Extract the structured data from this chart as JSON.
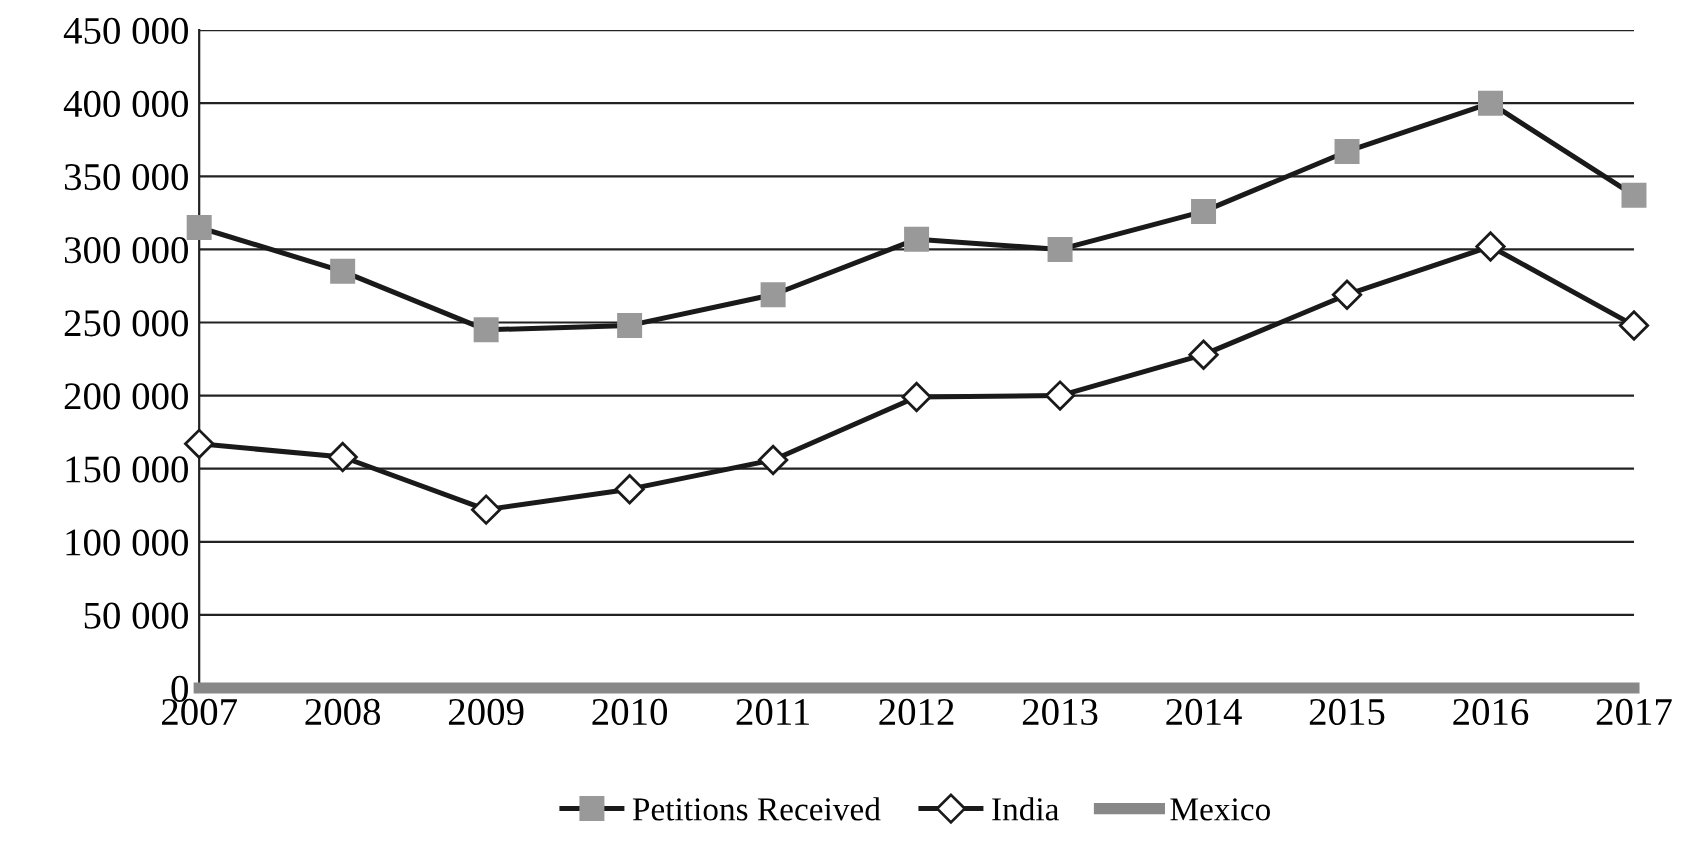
{
  "chart_data": {
    "type": "line",
    "x": [
      2007,
      2008,
      2009,
      2010,
      2011,
      2012,
      2013,
      2014,
      2015,
      2016,
      2017
    ],
    "series": [
      {
        "name": "Petitions Received",
        "color": "#1a1a1a",
        "marker": "square",
        "values": [
          315000,
          285000,
          245000,
          248000,
          269000,
          307000,
          300000,
          326000,
          367000,
          400000,
          337000
        ]
      },
      {
        "name": "India",
        "color": "#1a1a1a",
        "marker": "diamond",
        "values": [
          167000,
          158000,
          122000,
          136000,
          156000,
          199000,
          200000,
          228000,
          269000,
          302000,
          248000
        ]
      },
      {
        "name": "Mexico",
        "color": "#888888",
        "marker": "none",
        "values": [
          0,
          0,
          0,
          0,
          0,
          0,
          0,
          0,
          0,
          0,
          0
        ]
      }
    ],
    "xlim": [
      2007,
      2017
    ],
    "xticks": [
      2007,
      2008,
      2009,
      2010,
      2011,
      2012,
      2013,
      2014,
      2015,
      2016,
      2017
    ],
    "ylim": [
      0,
      450000
    ],
    "yticks": [
      0,
      {
        "value": 50000,
        "label": "50 000"
      },
      {
        "value": 100000,
        "label": "100 000"
      },
      {
        "value": 150000,
        "label": "150 000"
      },
      {
        "value": 200000,
        "label": "200 000"
      },
      {
        "value": 250000,
        "label": "250 000"
      },
      {
        "value": 300000,
        "label": "300 000"
      },
      {
        "value": 350000,
        "label": "350 000"
      },
      {
        "value": 400000,
        "label": "400 000"
      },
      {
        "value": 450000,
        "label": "450 000"
      }
    ],
    "grid": "y",
    "legend": "bottom"
  }
}
